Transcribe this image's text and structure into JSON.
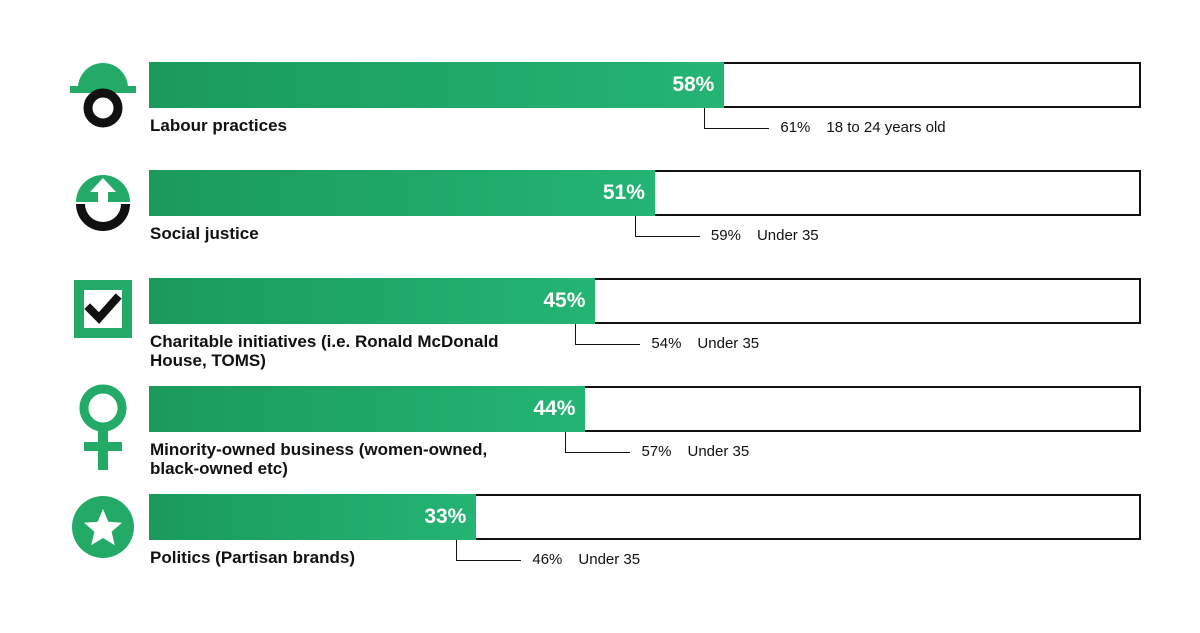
{
  "chart_data": {
    "type": "bar",
    "orientation": "horizontal",
    "xlim": [
      0,
      100
    ],
    "categories": [
      "Labour practices",
      "Social justice",
      "Charitable initiatives (i.e. Ronald McDonald House, TOMS)",
      "Minority-owned business (women-owned, black-owned etc)",
      "Politics (Partisan brands)"
    ],
    "values": [
      58,
      51,
      45,
      44,
      33
    ],
    "value_labels": [
      "58%",
      "51%",
      "45%",
      "44%",
      "33%"
    ],
    "sub_values": [
      61,
      59,
      54,
      57,
      46
    ],
    "sub_value_labels": [
      "61%",
      "59%",
      "54%",
      "57%",
      "46%"
    ],
    "sub_groups": [
      "18 to 24 years old",
      "Under 35",
      "Under 35",
      "Under 35",
      "Under 35"
    ],
    "icons": [
      "hard-hat-icon",
      "raised-fist-icon",
      "checkbox-icon",
      "female-symbol-icon",
      "star-badge-icon"
    ],
    "colors": {
      "bar_start": "#1a9a5c",
      "bar_end": "#24b474",
      "accent": "#22aa66",
      "ink": "#111111"
    }
  }
}
